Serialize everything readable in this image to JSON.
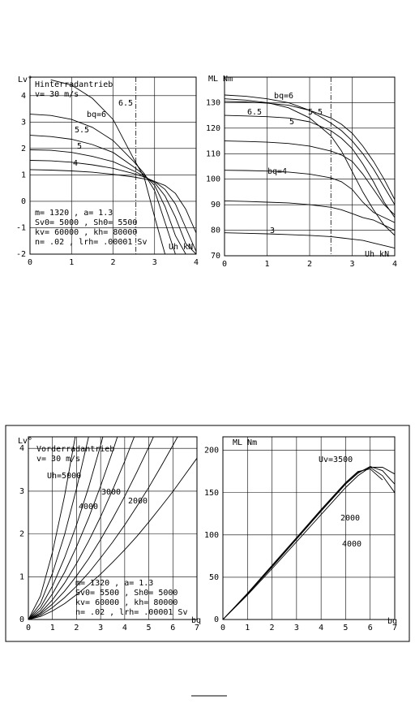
{
  "chart_data": [
    {
      "type": "line",
      "title": "Hinterradantrieb",
      "subtitle": "v= 30 m/s",
      "ylabel": "Lv°",
      "xlabel": "Uh kN",
      "annotations": [
        "m= 1320 , a= 1.3",
        "Sv0= 5000 , Sh0= 5500",
        "kv= 60000 , kh= 80000",
        "n= .02 , lrh= .00001 Sv"
      ],
      "color": "#000000",
      "grid": true,
      "vline": 2.55,
      "xlim": [
        0,
        4
      ],
      "ylim": [
        -2,
        4.7
      ],
      "xticks": [
        0,
        1,
        2,
        3,
        4
      ],
      "yticks": [
        -2,
        -1,
        0,
        1,
        2,
        3,
        4
      ],
      "x": [
        0,
        0.5,
        1,
        1.5,
        2,
        2.5,
        2.75,
        3,
        3.25,
        3.5,
        3.75,
        4
      ],
      "series": [
        {
          "name": "6.5",
          "values": [
            null,
            4.6,
            4.4,
            3.9,
            3.1,
            1.6,
            0.9,
            -0.6,
            -2,
            null,
            null,
            null
          ]
        },
        {
          "name": "bq=6",
          "values": [
            3.3,
            3.25,
            3.1,
            2.8,
            2.3,
            1.5,
            1.05,
            0.4,
            -0.8,
            -2,
            null,
            null
          ]
        },
        {
          "name": "5.5",
          "values": [
            2.5,
            2.45,
            2.35,
            2.15,
            1.85,
            1.3,
            1.0,
            0.6,
            -0.2,
            -1.3,
            -2,
            null
          ]
        },
        {
          "name": "5",
          "values": [
            1.95,
            1.93,
            1.85,
            1.7,
            1.5,
            1.15,
            0.95,
            0.7,
            0.2,
            -0.6,
            -1.6,
            -2
          ]
        },
        {
          "name": "4",
          "values": [
            1.55,
            1.53,
            1.48,
            1.38,
            1.25,
            1.05,
            0.92,
            0.75,
            0.45,
            -0.1,
            -1.0,
            -1.9
          ]
        },
        {
          "values": [
            1.2,
            1.18,
            1.15,
            1.1,
            1.02,
            0.92,
            0.85,
            0.75,
            0.6,
            0.3,
            -0.3,
            -1.2
          ]
        }
      ]
    },
    {
      "type": "line",
      "ylabel": "ML Nm",
      "xlabel": "Uh kN",
      "color": "#000000",
      "grid": true,
      "vline": 2.5,
      "xlim": [
        0,
        4
      ],
      "ylim": [
        70,
        140
      ],
      "xticks": [
        0,
        1,
        2,
        3,
        4
      ],
      "yticks": [
        70,
        80,
        90,
        100,
        110,
        120,
        130
      ],
      "x": [
        0,
        0.5,
        1,
        1.5,
        2,
        2.5,
        2.75,
        3,
        3.25,
        3.5,
        3.75,
        4
      ],
      "series": [
        {
          "name": "bq=6",
          "values": [
            133,
            132.5,
            131.5,
            130,
            127,
            122,
            119,
            115,
            110,
            104,
            97,
            90
          ]
        },
        {
          "name": "6.5",
          "values": [
            131.5,
            131,
            130,
            128,
            124,
            117,
            111,
            103,
            95,
            88,
            82,
            78
          ]
        },
        {
          "name": "5.5",
          "values": [
            130.5,
            130.3,
            129.8,
            129,
            127,
            124,
            121.5,
            118,
            113,
            107,
            100,
            92
          ]
        },
        {
          "name": "5",
          "values": [
            125,
            124.8,
            124.5,
            124,
            122.5,
            119,
            116,
            112,
            106,
            99,
            91,
            85
          ]
        },
        {
          "values": [
            115,
            114.8,
            114.5,
            114,
            113,
            111,
            109.5,
            107,
            102,
            96,
            90,
            86
          ]
        },
        {
          "name": "bq=4",
          "values": [
            103.5,
            103.4,
            103.2,
            102.8,
            102,
            100.5,
            99,
            96,
            91,
            87,
            85,
            83
          ]
        },
        {
          "values": [
            91.5,
            91.3,
            91,
            90.7,
            90,
            89,
            88,
            86.5,
            85,
            84,
            82,
            80
          ]
        },
        {
          "name": "3",
          "values": [
            79,
            78.8,
            78.6,
            78.3,
            78,
            77.5,
            77,
            76.5,
            76,
            75,
            74,
            73
          ]
        }
      ]
    },
    {
      "type": "line",
      "title": "Vorderradantrieb",
      "subtitle": "v= 30 m/s",
      "ylabel": "Lv°",
      "xlabel": "bq",
      "annotations": [
        "m= 1320 , a= 1.3",
        "Sv0= 5500 , Sh0= 5000",
        "kv= 60000 , kh= 80000",
        "n= .02 , lrh= .00001 Sv"
      ],
      "color": "#000000",
      "grid": true,
      "xlim": [
        0,
        7
      ],
      "ylim": [
        0,
        4.27
      ],
      "xticks": [
        0,
        1,
        2,
        3,
        4,
        5,
        6,
        7
      ],
      "yticks": [
        0,
        1,
        2,
        3,
        4
      ],
      "x": [
        0,
        0.5,
        1,
        1.5,
        2,
        2.5,
        3,
        3.5,
        4,
        4.5,
        5,
        5.5,
        6,
        6.5,
        7
      ],
      "series": [
        {
          "name": "Uh=5000",
          "values": [
            0,
            0.55,
            1.57,
            2.88,
            4.44,
            null,
            null,
            null,
            null,
            null,
            null,
            null,
            null,
            null,
            null
          ]
        },
        {
          "values": [
            0,
            0.38,
            1.08,
            1.98,
            3.06,
            4.27,
            null,
            null,
            null,
            null,
            null,
            null,
            null,
            null,
            null
          ]
        },
        {
          "name": "4000",
          "values": [
            0,
            0.28,
            0.78,
            1.44,
            2.21,
            3.09,
            4.07,
            5.12,
            null,
            null,
            null,
            null,
            null,
            null,
            null
          ]
        },
        {
          "values": [
            0,
            0.21,
            0.6,
            1.1,
            1.7,
            2.37,
            3.12,
            3.93,
            4.8,
            null,
            null,
            null,
            null,
            null,
            null
          ]
        },
        {
          "name": "3000",
          "values": [
            0,
            0.16,
            0.46,
            0.85,
            1.31,
            1.83,
            2.4,
            3.03,
            3.7,
            4.42,
            null,
            null,
            null,
            null,
            null
          ]
        },
        {
          "values": [
            0,
            0.13,
            0.36,
            0.66,
            1.02,
            1.42,
            1.87,
            2.36,
            2.88,
            3.44,
            4.03,
            4.65,
            null,
            null,
            null
          ]
        },
        {
          "name": "2000",
          "values": [
            0,
            0.1,
            0.28,
            0.51,
            0.78,
            1.09,
            1.44,
            1.81,
            2.21,
            2.64,
            3.09,
            3.57,
            4.07,
            4.58,
            null
          ]
        },
        {
          "values": [
            0,
            0.07,
            0.2,
            0.37,
            0.58,
            0.81,
            1.06,
            1.34,
            1.63,
            1.94,
            2.28,
            2.63,
            2.99,
            3.38,
            3.77
          ]
        }
      ]
    },
    {
      "type": "line",
      "ylabel": "ML Nm",
      "xlabel": "bq",
      "color": "#000000",
      "grid": true,
      "xlim": [
        0,
        7
      ],
      "ylim": [
        0,
        216
      ],
      "xticks": [
        0,
        1,
        2,
        3,
        4,
        5,
        6,
        7
      ],
      "yticks": [
        0,
        50,
        100,
        150,
        200
      ],
      "x": [
        0,
        1,
        2,
        3,
        4,
        5,
        5.5,
        6,
        6.5,
        7
      ],
      "series": [
        {
          "name": "Uv=3500",
          "values": [
            0,
            30,
            62,
            95,
            128,
            160,
            173,
            181,
            176,
            160
          ]
        },
        {
          "name": "2000",
          "values": [
            0,
            31,
            64,
            97,
            130,
            162,
            175,
            178,
            165,
            null
          ]
        },
        {
          "name": "4000",
          "values": [
            0,
            29,
            60,
            92,
            124,
            156,
            170,
            180,
            180,
            172
          ]
        },
        {
          "values": [
            0,
            30,
            63,
            96,
            129,
            161,
            174,
            180,
            170,
            150
          ]
        }
      ]
    }
  ]
}
